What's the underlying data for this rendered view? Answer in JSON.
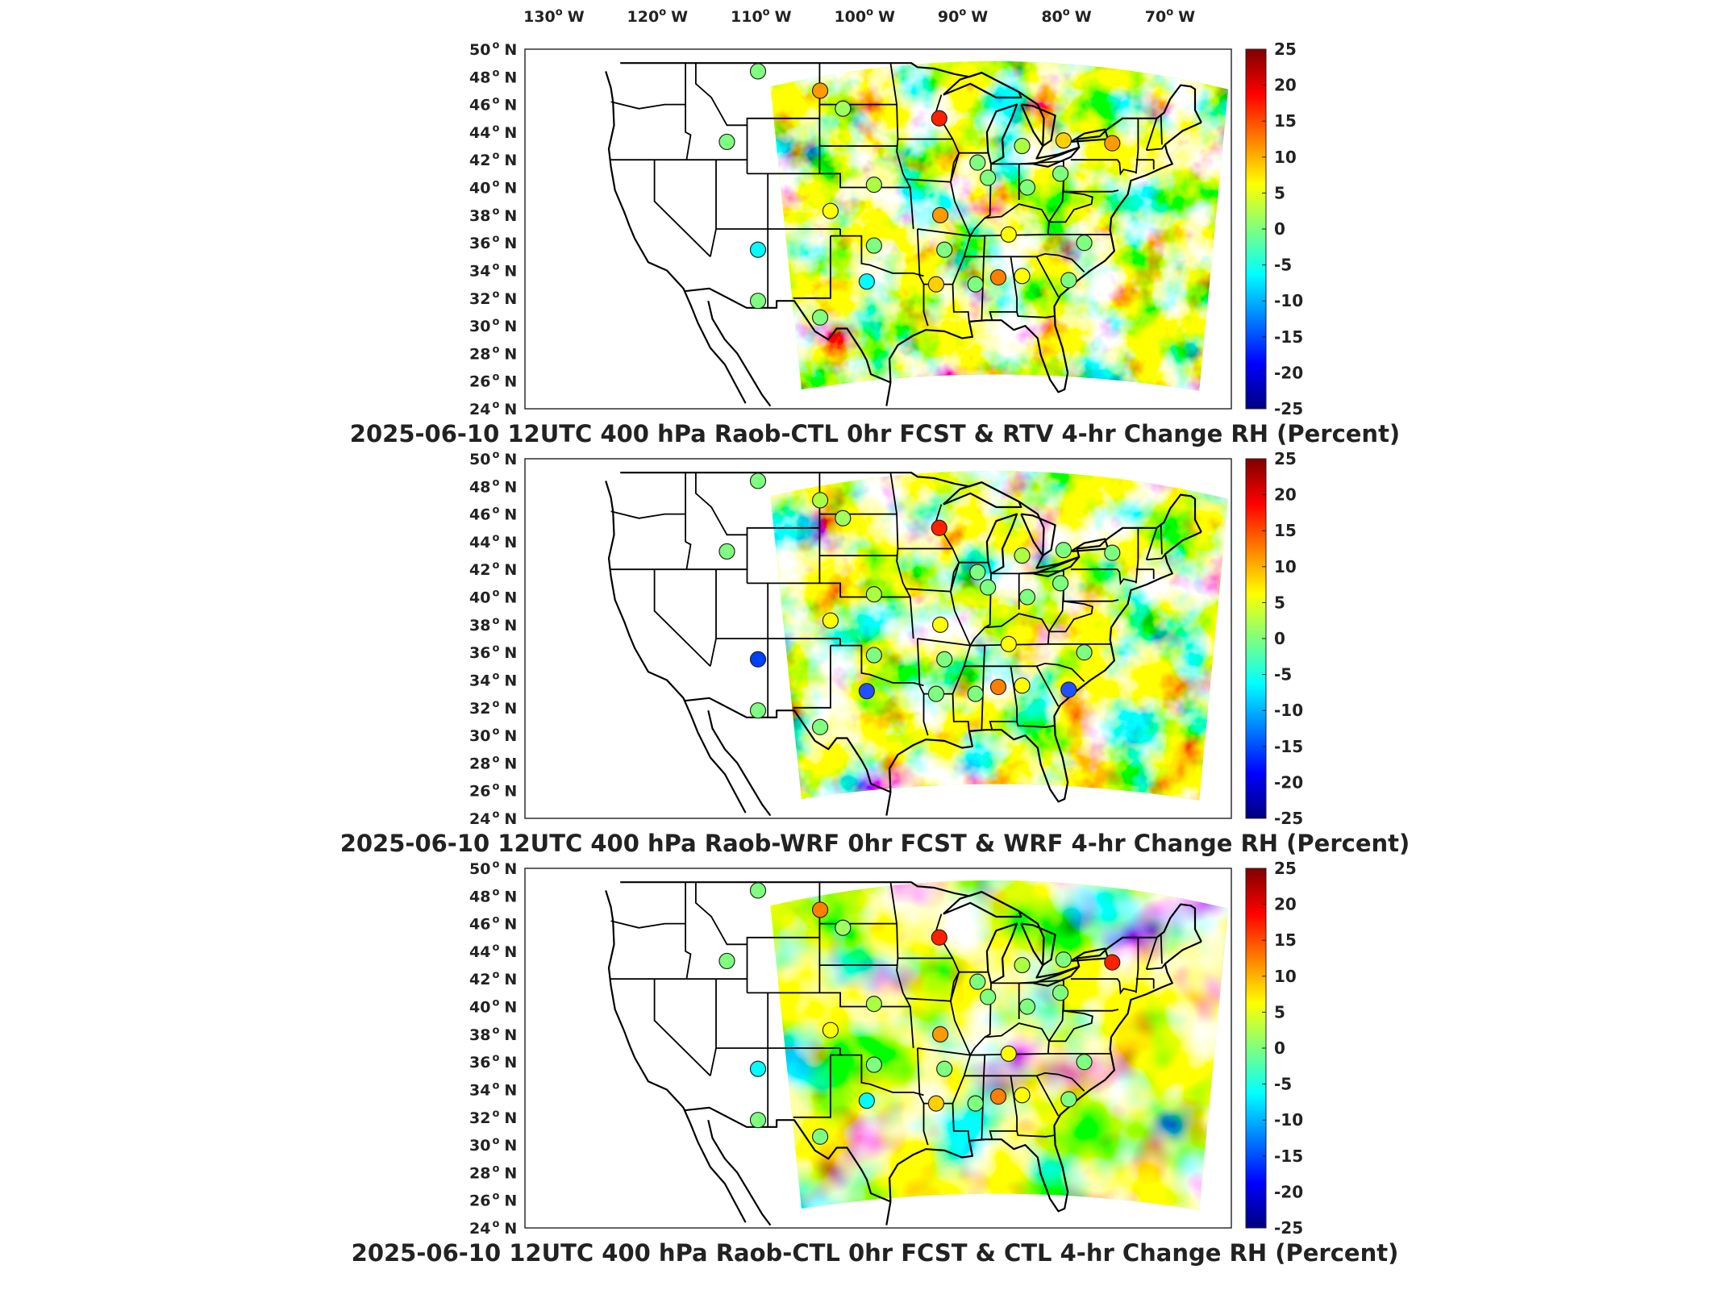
{
  "lon_labels": [
    {
      "deg": "130",
      "hemi": "W"
    },
    {
      "deg": "120",
      "hemi": "W"
    },
    {
      "deg": "110",
      "hemi": "W"
    },
    {
      "deg": "100",
      "hemi": "W"
    },
    {
      "deg": "90",
      "hemi": "W"
    },
    {
      "deg": "80",
      "hemi": "W"
    },
    {
      "deg": "70",
      "hemi": "W"
    }
  ],
  "lat_labels": [
    {
      "deg": "50",
      "hemi": "N"
    },
    {
      "deg": "48",
      "hemi": "N"
    },
    {
      "deg": "46",
      "hemi": "N"
    },
    {
      "deg": "44",
      "hemi": "N"
    },
    {
      "deg": "42",
      "hemi": "N"
    },
    {
      "deg": "40",
      "hemi": "N"
    },
    {
      "deg": "38",
      "hemi": "N"
    },
    {
      "deg": "36",
      "hemi": "N"
    },
    {
      "deg": "34",
      "hemi": "N"
    },
    {
      "deg": "32",
      "hemi": "N"
    },
    {
      "deg": "30",
      "hemi": "N"
    },
    {
      "deg": "28",
      "hemi": "N"
    },
    {
      "deg": "26",
      "hemi": "N"
    },
    {
      "deg": "24",
      "hemi": "N"
    }
  ],
  "colorbar": {
    "ticks": [
      "25",
      "20",
      "15",
      "10",
      "5",
      "0",
      "-5",
      "-10",
      "-15",
      "-20",
      "-25"
    ],
    "colormap": [
      "#7f0000",
      "#ff0000",
      "#ff7f00",
      "#ffff00",
      "#7fff7f",
      "#00ffff",
      "#007fff",
      "#0000ff",
      "#00007f"
    ]
  },
  "panels": [
    {
      "title": "2025-06-10 12UTC 400 hPa Raob-CTL 0hr FCST & RTV 4-hr Change RH (Percent)",
      "stations": [
        [
          "#7fff7f",
          -110,
          48.4
        ],
        [
          "#ff9a00",
          -104,
          47
        ],
        [
          "#9fff5f",
          -101.8,
          45.7
        ],
        [
          "#ff2000",
          -92.5,
          45
        ],
        [
          "#7fff7f",
          -113,
          43.3
        ],
        [
          "#7fff7f",
          -88.8,
          41.8
        ],
        [
          "#aaff40",
          -84.5,
          43
        ],
        [
          "#ffd000",
          -80.5,
          43.4
        ],
        [
          "#ff9a00",
          -75.8,
          43.2
        ],
        [
          "#7fff7f",
          -87.8,
          40.7
        ],
        [
          "#7fff7f",
          -84,
          40
        ],
        [
          "#7fff7f",
          -80.8,
          41
        ],
        [
          "#aaff40",
          -98.8,
          40.2
        ],
        [
          "#ffff00",
          -103,
          38.3
        ],
        [
          "#ff9a00",
          -92.4,
          38
        ],
        [
          "#00ffff",
          -110,
          35.5
        ],
        [
          "#7fff7f",
          -98.8,
          35.8
        ],
        [
          "#7fff7f",
          -92,
          35.5
        ],
        [
          "#ffff00",
          -85.8,
          36.6
        ],
        [
          "#7fff7f",
          -78.5,
          36
        ],
        [
          "#00ffff",
          -99.5,
          33.2
        ],
        [
          "#ffd000",
          -92.8,
          33
        ],
        [
          "#7fff7f",
          -89,
          33
        ],
        [
          "#ff7f00",
          -86.8,
          33.5
        ],
        [
          "#ffff00",
          -84.5,
          33.6
        ],
        [
          "#7fff7f",
          -80,
          33.3
        ],
        [
          "#7fff7f",
          -110,
          31.8
        ],
        [
          "#7fff7f",
          -104,
          30.6
        ]
      ]
    },
    {
      "title": "2025-06-10 12UTC 400 hPa Raob-WRF 0hr FCST & WRF 4-hr Change RH (Percent)",
      "stations": [
        [
          "#7fff7f",
          -110,
          48.4
        ],
        [
          "#aaff40",
          -104,
          47
        ],
        [
          "#9fff5f",
          -101.8,
          45.7
        ],
        [
          "#ff2000",
          -92.5,
          45
        ],
        [
          "#7fff7f",
          -113,
          43.3
        ],
        [
          "#7fff7f",
          -88.8,
          41.8
        ],
        [
          "#aaff40",
          -84.5,
          43
        ],
        [
          "#7fff7f",
          -80.5,
          43.4
        ],
        [
          "#7fff7f",
          -75.8,
          43.2
        ],
        [
          "#7fff7f",
          -87.8,
          40.7
        ],
        [
          "#7fff7f",
          -84,
          40
        ],
        [
          "#7fff7f",
          -80.8,
          41
        ],
        [
          "#aaff40",
          -98.8,
          40.2
        ],
        [
          "#ffff00",
          -103,
          38.3
        ],
        [
          "#ffff00",
          -92.4,
          38
        ],
        [
          "#0040ff",
          -110,
          35.5
        ],
        [
          "#7fff7f",
          -98.8,
          35.8
        ],
        [
          "#7fff7f",
          -92,
          35.5
        ],
        [
          "#ffff00",
          -85.8,
          36.6
        ],
        [
          "#7fff7f",
          -78.5,
          36
        ],
        [
          "#2050ff",
          -99.5,
          33.2
        ],
        [
          "#7fff7f",
          -92.8,
          33
        ],
        [
          "#7fff7f",
          -89,
          33
        ],
        [
          "#ff7f00",
          -86.8,
          33.5
        ],
        [
          "#ffff00",
          -84.5,
          33.6
        ],
        [
          "#2050ff",
          -80,
          33.3
        ],
        [
          "#7fff7f",
          -110,
          31.8
        ],
        [
          "#7fff7f",
          -104,
          30.6
        ]
      ]
    },
    {
      "title": "2025-06-10 12UTC 400 hPa Raob-CTL 0hr FCST & CTL 4-hr Change RH (Percent)",
      "stations": [
        [
          "#7fff7f",
          -110,
          48.4
        ],
        [
          "#ff7f00",
          -104,
          47
        ],
        [
          "#9fff5f",
          -101.8,
          45.7
        ],
        [
          "#ff2000",
          -92.5,
          45
        ],
        [
          "#7fff7f",
          -113,
          43.3
        ],
        [
          "#7fff7f",
          -88.8,
          41.8
        ],
        [
          "#aaff40",
          -84.5,
          43
        ],
        [
          "#7fff7f",
          -80.5,
          43.4
        ],
        [
          "#ff2000",
          -75.8,
          43.2
        ],
        [
          "#7fff7f",
          -87.8,
          40.7
        ],
        [
          "#7fff7f",
          -84,
          40
        ],
        [
          "#7fff7f",
          -80.8,
          41
        ],
        [
          "#aaff40",
          -98.8,
          40.2
        ],
        [
          "#ffff00",
          -103,
          38.3
        ],
        [
          "#ff9a00",
          -92.4,
          38
        ],
        [
          "#00ffff",
          -110,
          35.5
        ],
        [
          "#7fff7f",
          -98.8,
          35.8
        ],
        [
          "#7fff7f",
          -92,
          35.5
        ],
        [
          "#ffff00",
          -85.8,
          36.6
        ],
        [
          "#7fff7f",
          -78.5,
          36
        ],
        [
          "#00ffff",
          -99.5,
          33.2
        ],
        [
          "#ffd000",
          -92.8,
          33
        ],
        [
          "#7fff7f",
          -89,
          33
        ],
        [
          "#ff7f00",
          -86.8,
          33.5
        ],
        [
          "#ffff00",
          -84.5,
          33.6
        ],
        [
          "#7fff7f",
          -80,
          33.3
        ],
        [
          "#7fff7f",
          -110,
          31.8
        ],
        [
          "#7fff7f",
          -104,
          30.6
        ]
      ]
    }
  ]
}
